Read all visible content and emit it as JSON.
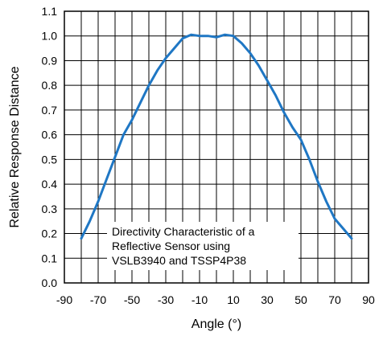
{
  "chart_data": {
    "type": "line",
    "title": "",
    "xlabel": "Angle (°)",
    "ylabel": "Relative Response Distance",
    "xlim": [
      -90,
      90
    ],
    "ylim": [
      0,
      1.1
    ],
    "x_tick_labels": [
      "-90",
      "-70",
      "-50",
      "-30",
      "-10",
      "10",
      "30",
      "50",
      "70",
      "90"
    ],
    "y_tick_labels": [
      "0.0",
      "0.1",
      "0.2",
      "0.3",
      "0.4",
      "0.5",
      "0.6",
      "0.7",
      "0.8",
      "0.9",
      "1.0",
      "1.1"
    ],
    "grid": true,
    "annotation": [
      "Directivity Characteristic of a",
      "Reflective Sensor using",
      "VSLB3940 and TSSP4P38"
    ],
    "series": [
      {
        "color": "#1f77c4",
        "x": [
          -80,
          -75,
          -70,
          -65,
          -60,
          -55,
          -50,
          -45,
          -40,
          -35,
          -30,
          -25,
          -20,
          -15,
          -10,
          -5,
          0,
          5,
          10,
          15,
          20,
          25,
          30,
          35,
          40,
          45,
          50,
          55,
          60,
          65,
          70,
          75,
          80
        ],
        "y": [
          0.18,
          0.25,
          0.33,
          0.42,
          0.51,
          0.6,
          0.66,
          0.73,
          0.8,
          0.86,
          0.91,
          0.95,
          0.99,
          1.005,
          1.0,
          1.0,
          0.995,
          1.005,
          1.0,
          0.97,
          0.93,
          0.88,
          0.82,
          0.76,
          0.69,
          0.63,
          0.58,
          0.5,
          0.41,
          0.33,
          0.26,
          0.22,
          0.18
        ]
      }
    ]
  }
}
